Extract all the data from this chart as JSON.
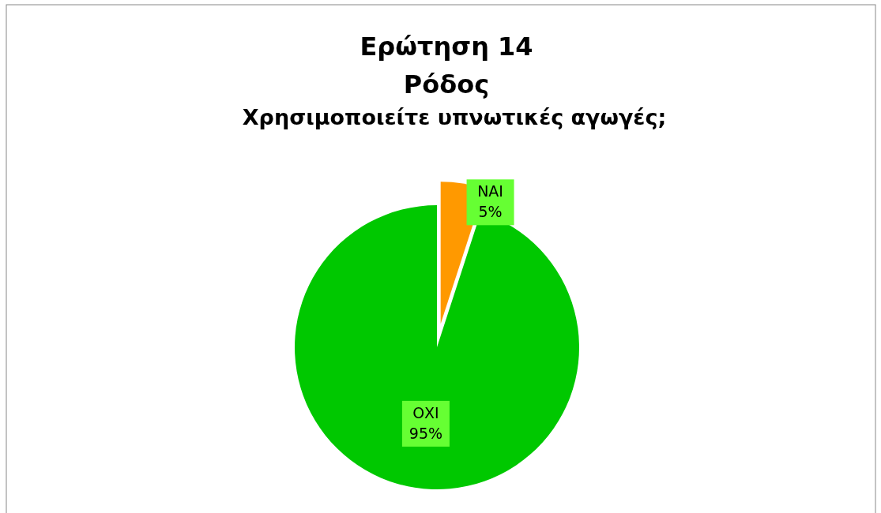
{
  "chart_data": {
    "type": "pie",
    "title": "Ερώτηση 14\nΡόδος",
    "subtitle": "Χρησιμοποιείτε υπνωτικές αγωγές;",
    "categories": [
      "ΝΑΙ",
      "ΟΧΙ"
    ],
    "values": [
      5,
      95
    ],
    "colors": [
      "#ff9900",
      "#00c800"
    ],
    "value_labels": [
      "5%",
      "95%"
    ]
  }
}
